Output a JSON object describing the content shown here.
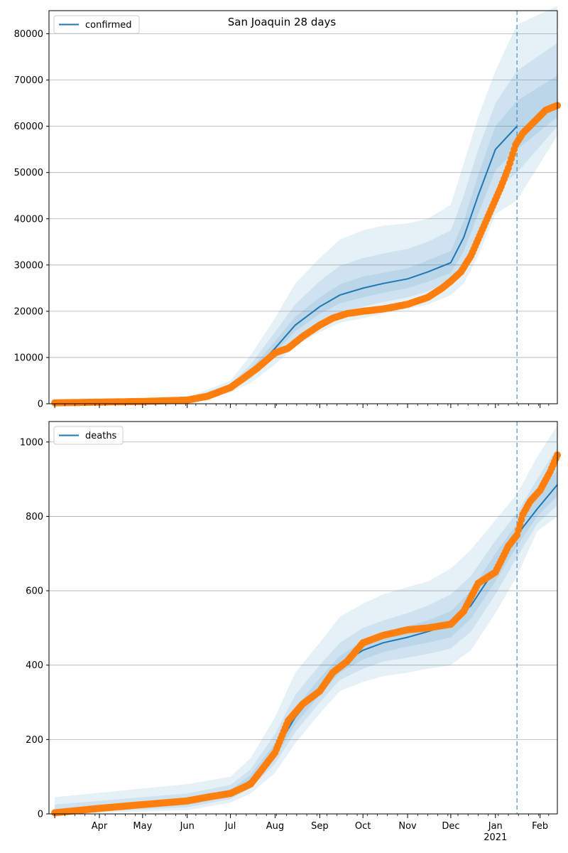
{
  "figure_title": "San Joaquin 28 days",
  "chart_data": [
    {
      "type": "line",
      "legend": "confirmed",
      "legend_position": "top-left",
      "grid": "horizontal",
      "ylim": [
        0,
        85000
      ],
      "yticks": [
        0,
        10000,
        20000,
        30000,
        40000,
        50000,
        60000,
        70000,
        80000
      ],
      "forecast_start": "2021-01-16",
      "colors": {
        "line": "#1f77b4",
        "band": "#1f77b4",
        "observed": "#ff7f0e",
        "forecast_marker": "#1f77b4"
      },
      "median": {
        "x": [
          "2020-03-01",
          "2020-06-01",
          "2020-07-01",
          "2020-07-15",
          "2020-08-01",
          "2020-08-15",
          "2020-09-01",
          "2020-09-15",
          "2020-10-01",
          "2020-10-15",
          "2020-11-01",
          "2020-11-15",
          "2020-12-01",
          "2020-12-10",
          "2020-12-20",
          "2021-01-01",
          "2021-01-16"
        ],
        "y": [
          100,
          800,
          3500,
          6500,
          12000,
          17000,
          21000,
          23500,
          25000,
          26000,
          27000,
          28500,
          30500,
          36000,
          45000,
          55000,
          60000
        ]
      },
      "bands": [
        {
          "x": [
            "2020-03-01",
            "2020-06-01",
            "2020-07-01",
            "2020-07-15",
            "2020-08-01",
            "2020-08-15",
            "2020-09-01",
            "2020-09-15",
            "2020-10-01",
            "2020-10-15",
            "2020-11-01",
            "2020-11-15",
            "2020-12-01",
            "2020-12-10",
            "2020-12-20",
            "2021-01-01",
            "2021-01-16"
          ],
          "lower": [
            0,
            500,
            2500,
            4500,
            8500,
            12500,
            15500,
            17500,
            18500,
            19500,
            20500,
            21500,
            23500,
            26000,
            32000,
            41000,
            44000
          ],
          "upper": [
            300,
            1300,
            5000,
            10500,
            18500,
            26000,
            31500,
            35500,
            37500,
            38500,
            39000,
            40000,
            43000,
            52000,
            62000,
            72000,
            82000
          ]
        },
        {
          "x": [
            "2020-03-01",
            "2020-06-01",
            "2020-07-01",
            "2020-07-15",
            "2020-08-01",
            "2020-08-15",
            "2020-09-01",
            "2020-09-15",
            "2020-10-01",
            "2020-10-15",
            "2020-11-01",
            "2020-11-15",
            "2020-12-01",
            "2020-12-10",
            "2020-12-20",
            "2021-01-01",
            "2021-01-16"
          ],
          "lower": [
            50,
            600,
            2900,
            5400,
            10000,
            14300,
            17700,
            19800,
            21000,
            22000,
            23000,
            24300,
            26300,
            30000,
            37000,
            46000,
            50000
          ],
          "upper": [
            200,
            1100,
            4300,
            8500,
            15500,
            21500,
            26500,
            29800,
            31500,
            32500,
            33500,
            35000,
            37500,
            45000,
            55000,
            65000,
            72000
          ]
        },
        {
          "x": [
            "2020-03-01",
            "2020-06-01",
            "2020-07-01",
            "2020-07-15",
            "2020-08-01",
            "2020-08-15",
            "2020-09-01",
            "2020-09-15",
            "2020-10-01",
            "2020-10-15",
            "2020-11-01",
            "2020-11-15",
            "2020-12-01",
            "2020-12-10",
            "2020-12-20",
            "2021-01-01",
            "2021-01-16"
          ],
          "lower": [
            70,
            700,
            3200,
            6000,
            11000,
            15700,
            19400,
            21700,
            23000,
            24000,
            25000,
            26400,
            28300,
            33000,
            41000,
            50500,
            55000
          ],
          "upper": [
            150,
            950,
            3900,
            7500,
            13500,
            18800,
            23000,
            25800,
            27500,
            28300,
            29300,
            31000,
            33000,
            39500,
            49500,
            60000,
            65500
          ]
        }
      ],
      "forecast_bands": [
        {
          "x": [
            "2021-01-16",
            "2021-02-13"
          ],
          "lower": [
            44000,
            58000
          ],
          "upper": [
            82000,
            86000
          ]
        },
        {
          "x": [
            "2021-01-16",
            "2021-02-13"
          ],
          "lower": [
            50000,
            60000
          ],
          "upper": [
            72000,
            78000
          ]
        },
        {
          "x": [
            "2021-01-16",
            "2021-02-13"
          ],
          "lower": [
            55000,
            62000
          ],
          "upper": [
            65500,
            71000
          ]
        }
      ],
      "observed": {
        "x": [
          "2020-03-01",
          "2020-04-01",
          "2020-05-01",
          "2020-06-01",
          "2020-06-15",
          "2020-07-01",
          "2020-07-10",
          "2020-07-20",
          "2020-08-01",
          "2020-08-10",
          "2020-08-20",
          "2020-09-01",
          "2020-09-10",
          "2020-09-20",
          "2020-10-01",
          "2020-10-15",
          "2020-11-01",
          "2020-11-15",
          "2020-11-25",
          "2020-12-01",
          "2020-12-08",
          "2020-12-15",
          "2020-12-22",
          "2020-12-29",
          "2021-01-05",
          "2021-01-10",
          "2021-01-15",
          "2021-01-20",
          "2021-01-28",
          "2021-02-05",
          "2021-02-13"
        ],
        "y": [
          200,
          350,
          500,
          800,
          1600,
          3500,
          5500,
          7800,
          11000,
          12000,
          14500,
          17000,
          18500,
          19500,
          20000,
          20500,
          21500,
          23000,
          25000,
          26500,
          28500,
          32000,
          37000,
          42000,
          47000,
          51000,
          56000,
          58500,
          61000,
          63500,
          64500
        ]
      }
    },
    {
      "type": "line",
      "legend": "deaths",
      "legend_position": "top-left",
      "grid": "horizontal",
      "ylim": [
        0,
        1055
      ],
      "yticks": [
        0,
        200,
        400,
        600,
        800,
        1000
      ],
      "xticks": [
        "Apr",
        "May",
        "Jun",
        "Jul",
        "Aug",
        "Sep",
        "Oct",
        "Nov",
        "Dec",
        "Jan",
        "Feb"
      ],
      "xtick_year": "2021",
      "forecast_start": "2021-01-16",
      "colors": {
        "line": "#1f77b4",
        "band": "#1f77b4",
        "observed": "#ff7f0e",
        "forecast_marker": "#1f77b4"
      },
      "median": {
        "x": [
          "2020-03-01",
          "2020-06-01",
          "2020-07-01",
          "2020-07-15",
          "2020-08-01",
          "2020-08-15",
          "2020-09-01",
          "2020-09-15",
          "2020-10-01",
          "2020-10-15",
          "2020-11-01",
          "2020-11-15",
          "2020-12-01",
          "2020-12-15",
          "2021-01-01",
          "2021-01-16",
          "2021-01-30",
          "2021-02-13"
        ],
        "y": [
          5,
          30,
          55,
          90,
          170,
          260,
          340,
          400,
          440,
          460,
          475,
          490,
          510,
          560,
          660,
          750,
          820,
          885
        ]
      },
      "bands": [
        {
          "x": [
            "2020-03-01",
            "2020-06-01",
            "2020-07-01",
            "2020-07-15",
            "2020-08-01",
            "2020-08-15",
            "2020-09-01",
            "2020-09-15",
            "2020-10-01",
            "2020-10-15",
            "2020-11-01",
            "2020-11-15",
            "2020-12-01",
            "2020-12-15",
            "2021-01-01",
            "2021-01-16",
            "2021-01-30",
            "2021-02-13"
          ],
          "lower": [
            0,
            10,
            30,
            55,
            110,
            190,
            270,
            330,
            355,
            370,
            380,
            390,
            400,
            440,
            540,
            640,
            760,
            800
          ],
          "upper": [
            45,
            80,
            100,
            150,
            260,
            380,
            460,
            530,
            565,
            590,
            610,
            625,
            660,
            710,
            790,
            860,
            960,
            1045
          ]
        },
        {
          "x": [
            "2020-03-01",
            "2020-06-01",
            "2020-07-01",
            "2020-07-15",
            "2020-08-01",
            "2020-08-15",
            "2020-09-01",
            "2020-09-15",
            "2020-10-01",
            "2020-10-15",
            "2020-11-01",
            "2020-11-15",
            "2020-12-01",
            "2020-12-15",
            "2021-01-01",
            "2021-01-16",
            "2021-01-30",
            "2021-02-13"
          ],
          "lower": [
            0,
            18,
            40,
            70,
            135,
            220,
            300,
            360,
            390,
            410,
            420,
            430,
            445,
            490,
            590,
            690,
            780,
            830
          ],
          "upper": [
            25,
            55,
            78,
            120,
            215,
            320,
            400,
            460,
            500,
            520,
            540,
            560,
            590,
            640,
            735,
            810,
            900,
            985
          ]
        },
        {
          "x": [
            "2020-03-01",
            "2020-06-01",
            "2020-07-01",
            "2020-07-15",
            "2020-08-01",
            "2020-08-15",
            "2020-09-01",
            "2020-09-15",
            "2020-10-01",
            "2020-10-15",
            "2020-11-01",
            "2020-11-15",
            "2020-12-01",
            "2020-12-15",
            "2021-01-01",
            "2021-01-16",
            "2021-01-30",
            "2021-02-13"
          ],
          "lower": [
            2,
            24,
            47,
            80,
            152,
            240,
            320,
            380,
            415,
            435,
            450,
            460,
            475,
            525,
            625,
            720,
            800,
            855
          ],
          "upper": [
            12,
            40,
            65,
            105,
            190,
            285,
            365,
            425,
            465,
            485,
            505,
            520,
            545,
            600,
            700,
            780,
            860,
            925
          ]
        }
      ],
      "observed": {
        "x": [
          "2020-03-01",
          "2020-04-01",
          "2020-05-01",
          "2020-06-01",
          "2020-06-15",
          "2020-07-01",
          "2020-07-15",
          "2020-08-01",
          "2020-08-10",
          "2020-08-20",
          "2020-09-01",
          "2020-09-10",
          "2020-09-20",
          "2020-10-01",
          "2020-10-15",
          "2020-11-01",
          "2020-11-15",
          "2020-12-01",
          "2020-12-10",
          "2020-12-20",
          "2021-01-01",
          "2021-01-10",
          "2021-01-16",
          "2021-01-20",
          "2021-01-25",
          "2021-02-01",
          "2021-02-08",
          "2021-02-13"
        ],
        "y": [
          3,
          15,
          25,
          35,
          45,
          55,
          80,
          165,
          250,
          295,
          330,
          380,
          410,
          460,
          480,
          495,
          500,
          510,
          545,
          620,
          650,
          720,
          750,
          805,
          840,
          870,
          920,
          965
        ]
      }
    }
  ]
}
